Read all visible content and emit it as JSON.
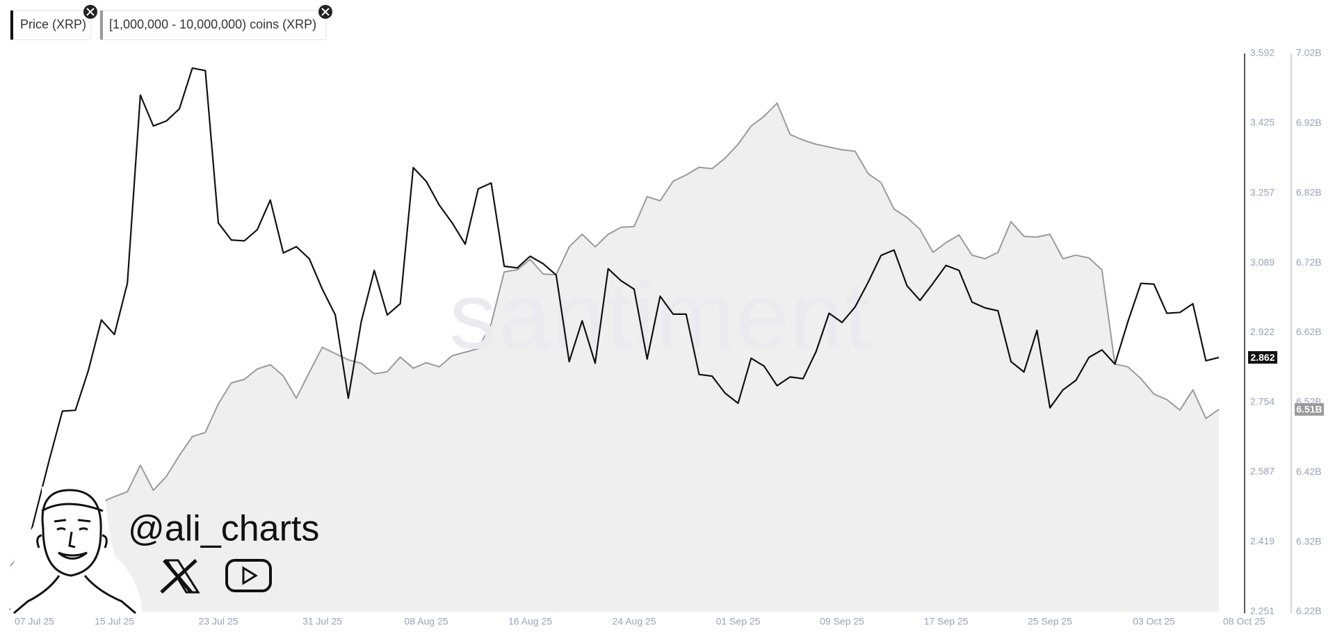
{
  "chart_data": {
    "type": "line",
    "watermark": "santiment",
    "handle": "@ali_charts",
    "x": [
      "2025-07-07",
      "2025-07-08",
      "2025-07-09",
      "2025-07-10",
      "2025-07-11",
      "2025-07-12",
      "2025-07-13",
      "2025-07-14",
      "2025-07-15",
      "2025-07-16",
      "2025-07-17",
      "2025-07-18",
      "2025-07-19",
      "2025-07-20",
      "2025-07-21",
      "2025-07-22",
      "2025-07-23",
      "2025-07-24",
      "2025-07-25",
      "2025-07-26",
      "2025-07-27",
      "2025-07-28",
      "2025-07-29",
      "2025-07-30",
      "2025-07-31",
      "2025-08-01",
      "2025-08-02",
      "2025-08-03",
      "2025-08-04",
      "2025-08-05",
      "2025-08-06",
      "2025-08-07",
      "2025-08-08",
      "2025-08-09",
      "2025-08-10",
      "2025-08-11",
      "2025-08-12",
      "2025-08-13",
      "2025-08-14",
      "2025-08-15",
      "2025-08-16",
      "2025-08-17",
      "2025-08-18",
      "2025-08-19",
      "2025-08-20",
      "2025-08-21",
      "2025-08-22",
      "2025-08-23",
      "2025-08-24",
      "2025-08-25",
      "2025-08-26",
      "2025-08-27",
      "2025-08-28",
      "2025-08-29",
      "2025-08-30",
      "2025-08-31",
      "2025-09-01",
      "2025-09-02",
      "2025-09-03",
      "2025-09-04",
      "2025-09-05",
      "2025-09-06",
      "2025-09-07",
      "2025-09-08",
      "2025-09-09",
      "2025-09-10",
      "2025-09-11",
      "2025-09-12",
      "2025-09-13",
      "2025-09-14",
      "2025-09-15",
      "2025-09-16",
      "2025-09-17",
      "2025-09-18",
      "2025-09-19",
      "2025-09-20",
      "2025-09-21",
      "2025-09-22",
      "2025-09-23",
      "2025-09-24",
      "2025-09-25",
      "2025-09-26",
      "2025-09-27",
      "2025-09-28",
      "2025-09-29",
      "2025-09-30",
      "2025-10-01",
      "2025-10-02",
      "2025-10-03",
      "2025-10-04",
      "2025-10-05",
      "2025-10-06",
      "2025-10-07",
      "2025-10-08"
    ],
    "xlim": [
      "2025-07-07",
      "2025-10-08"
    ],
    "xticks": [
      {
        "value": "2025-07-07",
        "label": "07 Jul 25"
      },
      {
        "value": "2025-07-15",
        "label": "15 Jul 25"
      },
      {
        "value": "2025-07-23",
        "label": "23 Jul 25"
      },
      {
        "value": "2025-07-31",
        "label": "31 Jul 25"
      },
      {
        "value": "2025-08-08",
        "label": "08 Aug 25"
      },
      {
        "value": "2025-08-16",
        "label": "16 Aug 25"
      },
      {
        "value": "2025-08-24",
        "label": "24 Aug 25"
      },
      {
        "value": "2025-09-01",
        "label": "01 Sep 25"
      },
      {
        "value": "2025-09-09",
        "label": "09 Sep 25"
      },
      {
        "value": "2025-09-17",
        "label": "17 Sep 25"
      },
      {
        "value": "2025-09-25",
        "label": "25 Sep 25"
      },
      {
        "value": "2025-10-03",
        "label": "03 Oct 25"
      },
      {
        "value": "2025-10-08",
        "label": "08 Oct 25"
      }
    ],
    "ylim": [
      2.251,
      3.592
    ],
    "yticks": [
      2.251,
      2.419,
      2.587,
      2.754,
      2.922,
      3.089,
      3.257,
      3.425,
      3.592
    ],
    "y2lim": [
      6.22,
      7.02
    ],
    "y2ticks": [
      {
        "value": 6.22,
        "label": "6.22B"
      },
      {
        "value": 6.32,
        "label": "6.32B"
      },
      {
        "value": 6.42,
        "label": "6.42B"
      },
      {
        "value": 6.52,
        "label": "6.52B"
      },
      {
        "value": 6.62,
        "label": "6.62B"
      },
      {
        "value": 6.72,
        "label": "6.72B"
      },
      {
        "value": 6.82,
        "label": "6.82B"
      },
      {
        "value": 6.92,
        "label": "6.92B"
      },
      {
        "value": 7.02,
        "label": "7.02B"
      }
    ],
    "grid": false,
    "series": [
      {
        "name": "Price (XRP)",
        "color": "#111111",
        "axis": "y",
        "area": false,
        "last_label": "2.862",
        "values": [
          2.255,
          2.371,
          2.494,
          2.617,
          2.733,
          2.735,
          2.831,
          2.952,
          2.917,
          3.04,
          3.492,
          3.418,
          3.43,
          3.459,
          3.557,
          3.551,
          3.185,
          3.144,
          3.142,
          3.169,
          3.24,
          3.113,
          3.128,
          3.099,
          3.026,
          2.964,
          2.764,
          2.948,
          3.071,
          2.964,
          2.991,
          3.318,
          3.285,
          3.228,
          3.185,
          3.134,
          3.267,
          3.281,
          3.081,
          3.077,
          3.105,
          3.087,
          3.06,
          2.852,
          2.95,
          2.848,
          3.075,
          3.046,
          3.026,
          2.858,
          3.009,
          2.966,
          2.966,
          2.821,
          2.817,
          2.776,
          2.752,
          2.86,
          2.841,
          2.794,
          2.815,
          2.811,
          2.876,
          2.968,
          2.946,
          2.983,
          3.042,
          3.107,
          3.12,
          3.034,
          2.999,
          3.04,
          3.083,
          3.071,
          2.995,
          2.981,
          2.974,
          2.852,
          2.827,
          2.927,
          2.741,
          2.784,
          2.807,
          2.862,
          2.88,
          2.846,
          2.948,
          3.04,
          3.038,
          2.968,
          2.97,
          2.991,
          2.854,
          2.862
        ]
      },
      {
        "name": "[1,000,000 - 10,000,000) coins (XRP)",
        "color": "#9a9a9a",
        "axis": "y2",
        "area": true,
        "area_color": "#efefef",
        "last_label": "6.51B",
        "values": [
          6.286,
          6.307,
          6.316,
          6.338,
          6.353,
          6.363,
          6.37,
          6.377,
          6.385,
          6.392,
          6.43,
          6.394,
          6.414,
          6.444,
          6.471,
          6.477,
          6.518,
          6.548,
          6.553,
          6.568,
          6.574,
          6.558,
          6.526,
          6.563,
          6.599,
          6.59,
          6.581,
          6.576,
          6.561,
          6.564,
          6.585,
          6.569,
          6.577,
          6.571,
          6.587,
          6.592,
          6.597,
          6.633,
          6.707,
          6.71,
          6.725,
          6.704,
          6.703,
          6.743,
          6.761,
          6.743,
          6.761,
          6.771,
          6.772,
          6.815,
          6.809,
          6.837,
          6.846,
          6.857,
          6.855,
          6.87,
          6.89,
          6.916,
          6.93,
          6.949,
          6.904,
          6.896,
          6.89,
          6.886,
          6.882,
          6.88,
          6.848,
          6.835,
          6.797,
          6.785,
          6.768,
          6.735,
          6.749,
          6.76,
          6.731,
          6.726,
          6.735,
          6.779,
          6.758,
          6.757,
          6.761,
          6.726,
          6.731,
          6.727,
          6.71,
          6.575,
          6.571,
          6.554,
          6.532,
          6.524,
          6.509,
          6.538,
          6.497,
          6.51
        ]
      }
    ]
  }
}
